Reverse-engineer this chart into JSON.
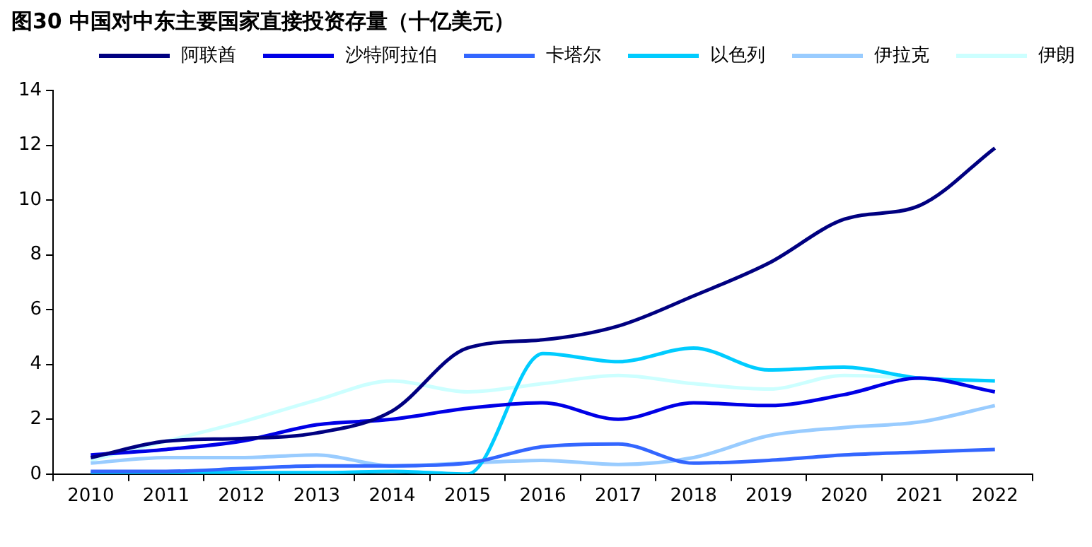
{
  "chart_data": {
    "type": "line",
    "title": "图30 中国对中东主要国家直接投资存量（十亿美元）",
    "categories": [
      "2010",
      "2011",
      "2012",
      "2013",
      "2014",
      "2015",
      "2016",
      "2017",
      "2018",
      "2019",
      "2020",
      "2021",
      "2022"
    ],
    "ylim": [
      0,
      14
    ],
    "yticks": [
      0,
      2,
      4,
      6,
      8,
      10,
      12,
      14
    ],
    "grid": false,
    "legend": "top",
    "marker": "none",
    "line_style": "solid",
    "series": [
      {
        "name": "阿联酋",
        "color": "#000080",
        "values": [
          0.6,
          1.2,
          1.3,
          1.5,
          2.3,
          4.6,
          4.9,
          5.4,
          6.5,
          7.7,
          9.3,
          9.8,
          11.9
        ]
      },
      {
        "name": "沙特阿拉伯",
        "color": "#0000e6",
        "values": [
          0.7,
          0.9,
          1.2,
          1.8,
          2.0,
          2.4,
          2.6,
          2.0,
          2.6,
          2.5,
          2.9,
          3.5,
          3.0
        ]
      },
      {
        "name": "卡塔尔",
        "color": "#3366ff",
        "values": [
          0.1,
          0.1,
          0.2,
          0.3,
          0.3,
          0.4,
          1.0,
          1.1,
          0.4,
          0.5,
          0.7,
          0.8,
          0.9
        ]
      },
      {
        "name": "以色列",
        "color": "#00ccff",
        "values": [
          0.05,
          0.05,
          0.05,
          0.05,
          0.1,
          0.0,
          4.4,
          4.1,
          4.6,
          3.8,
          3.9,
          3.5,
          3.4
        ]
      },
      {
        "name": "伊拉克",
        "color": "#99ccff",
        "values": [
          0.4,
          0.6,
          0.6,
          0.7,
          0.3,
          0.4,
          0.5,
          0.35,
          0.6,
          1.4,
          1.7,
          1.9,
          2.5
        ]
      },
      {
        "name": "伊朗",
        "color": "#ccffff",
        "values": [
          0.5,
          1.2,
          1.9,
          2.7,
          3.4,
          3.0,
          3.3,
          3.6,
          3.3,
          3.1,
          3.6,
          3.5,
          3.4
        ]
      }
    ]
  }
}
